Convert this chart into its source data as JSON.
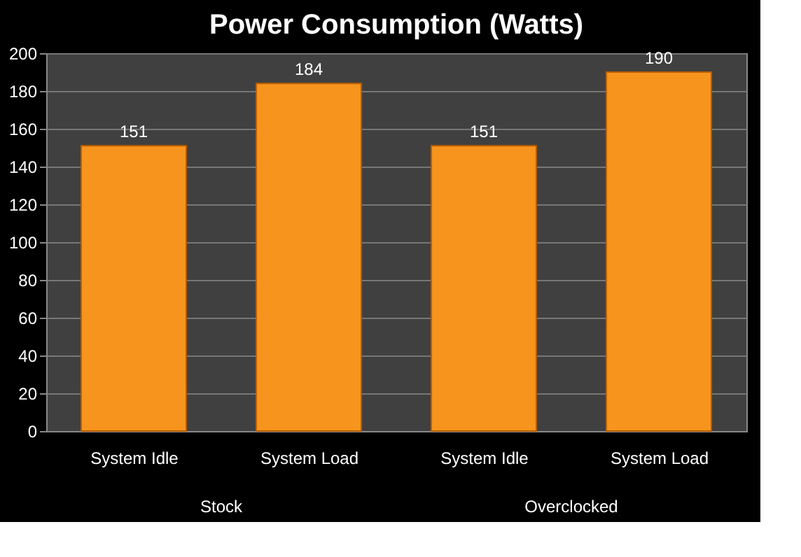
{
  "chart_data": {
    "type": "bar",
    "title": "Power Consumption (Watts)",
    "categories": [
      "System Idle",
      "System Load",
      "System Idle",
      "System Load"
    ],
    "values": [
      151,
      184,
      151,
      190
    ],
    "color": "#f7941d",
    "ylim": [
      0,
      200
    ],
    "yticks": [
      0,
      20,
      40,
      60,
      80,
      100,
      120,
      140,
      160,
      180,
      200
    ],
    "grid": "y",
    "data_labels": true,
    "annotations": [
      "Stock",
      "Overclocked"
    ]
  }
}
